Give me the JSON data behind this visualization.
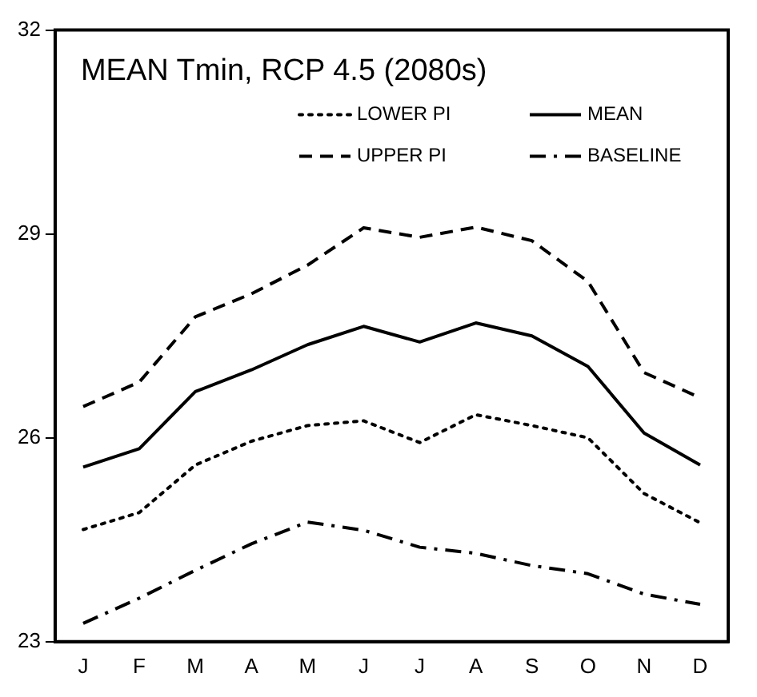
{
  "chart_data": {
    "type": "line",
    "title": "MEAN Tmin, RCP 4.5 (2080s)",
    "categories": [
      "J",
      "F",
      "M",
      "A",
      "M",
      "J",
      "J",
      "A",
      "S",
      "O",
      "N",
      "D"
    ],
    "series": [
      {
        "name": "LOWER PI",
        "color": "#000000",
        "line_style": "dotted",
        "values": [
          24.65,
          24.9,
          25.6,
          25.95,
          26.18,
          26.25,
          25.93,
          26.34,
          26.18,
          26.0,
          25.18,
          24.75
        ]
      },
      {
        "name": "MEAN",
        "color": "#000000",
        "line_style": "solid",
        "values": [
          25.57,
          25.84,
          26.68,
          27.0,
          27.37,
          27.64,
          27.41,
          27.69,
          27.5,
          27.05,
          26.07,
          25.6
        ]
      },
      {
        "name": "UPPER PI",
        "color": "#000000",
        "line_style": "dashed",
        "values": [
          26.46,
          26.82,
          27.78,
          28.12,
          28.54,
          29.09,
          28.95,
          29.1,
          28.9,
          28.3,
          26.96,
          26.59
        ]
      },
      {
        "name": "BASELINE",
        "color": "#000000",
        "line_style": "dashdot",
        "values": [
          23.27,
          23.64,
          24.05,
          24.44,
          24.76,
          24.64,
          24.39,
          24.3,
          24.12,
          24.0,
          23.7,
          23.55
        ]
      }
    ],
    "ylim": [
      23,
      32
    ],
    "yticks": [
      23,
      26,
      29,
      32
    ],
    "grid": false,
    "legend": "top right",
    "marker": "none"
  }
}
